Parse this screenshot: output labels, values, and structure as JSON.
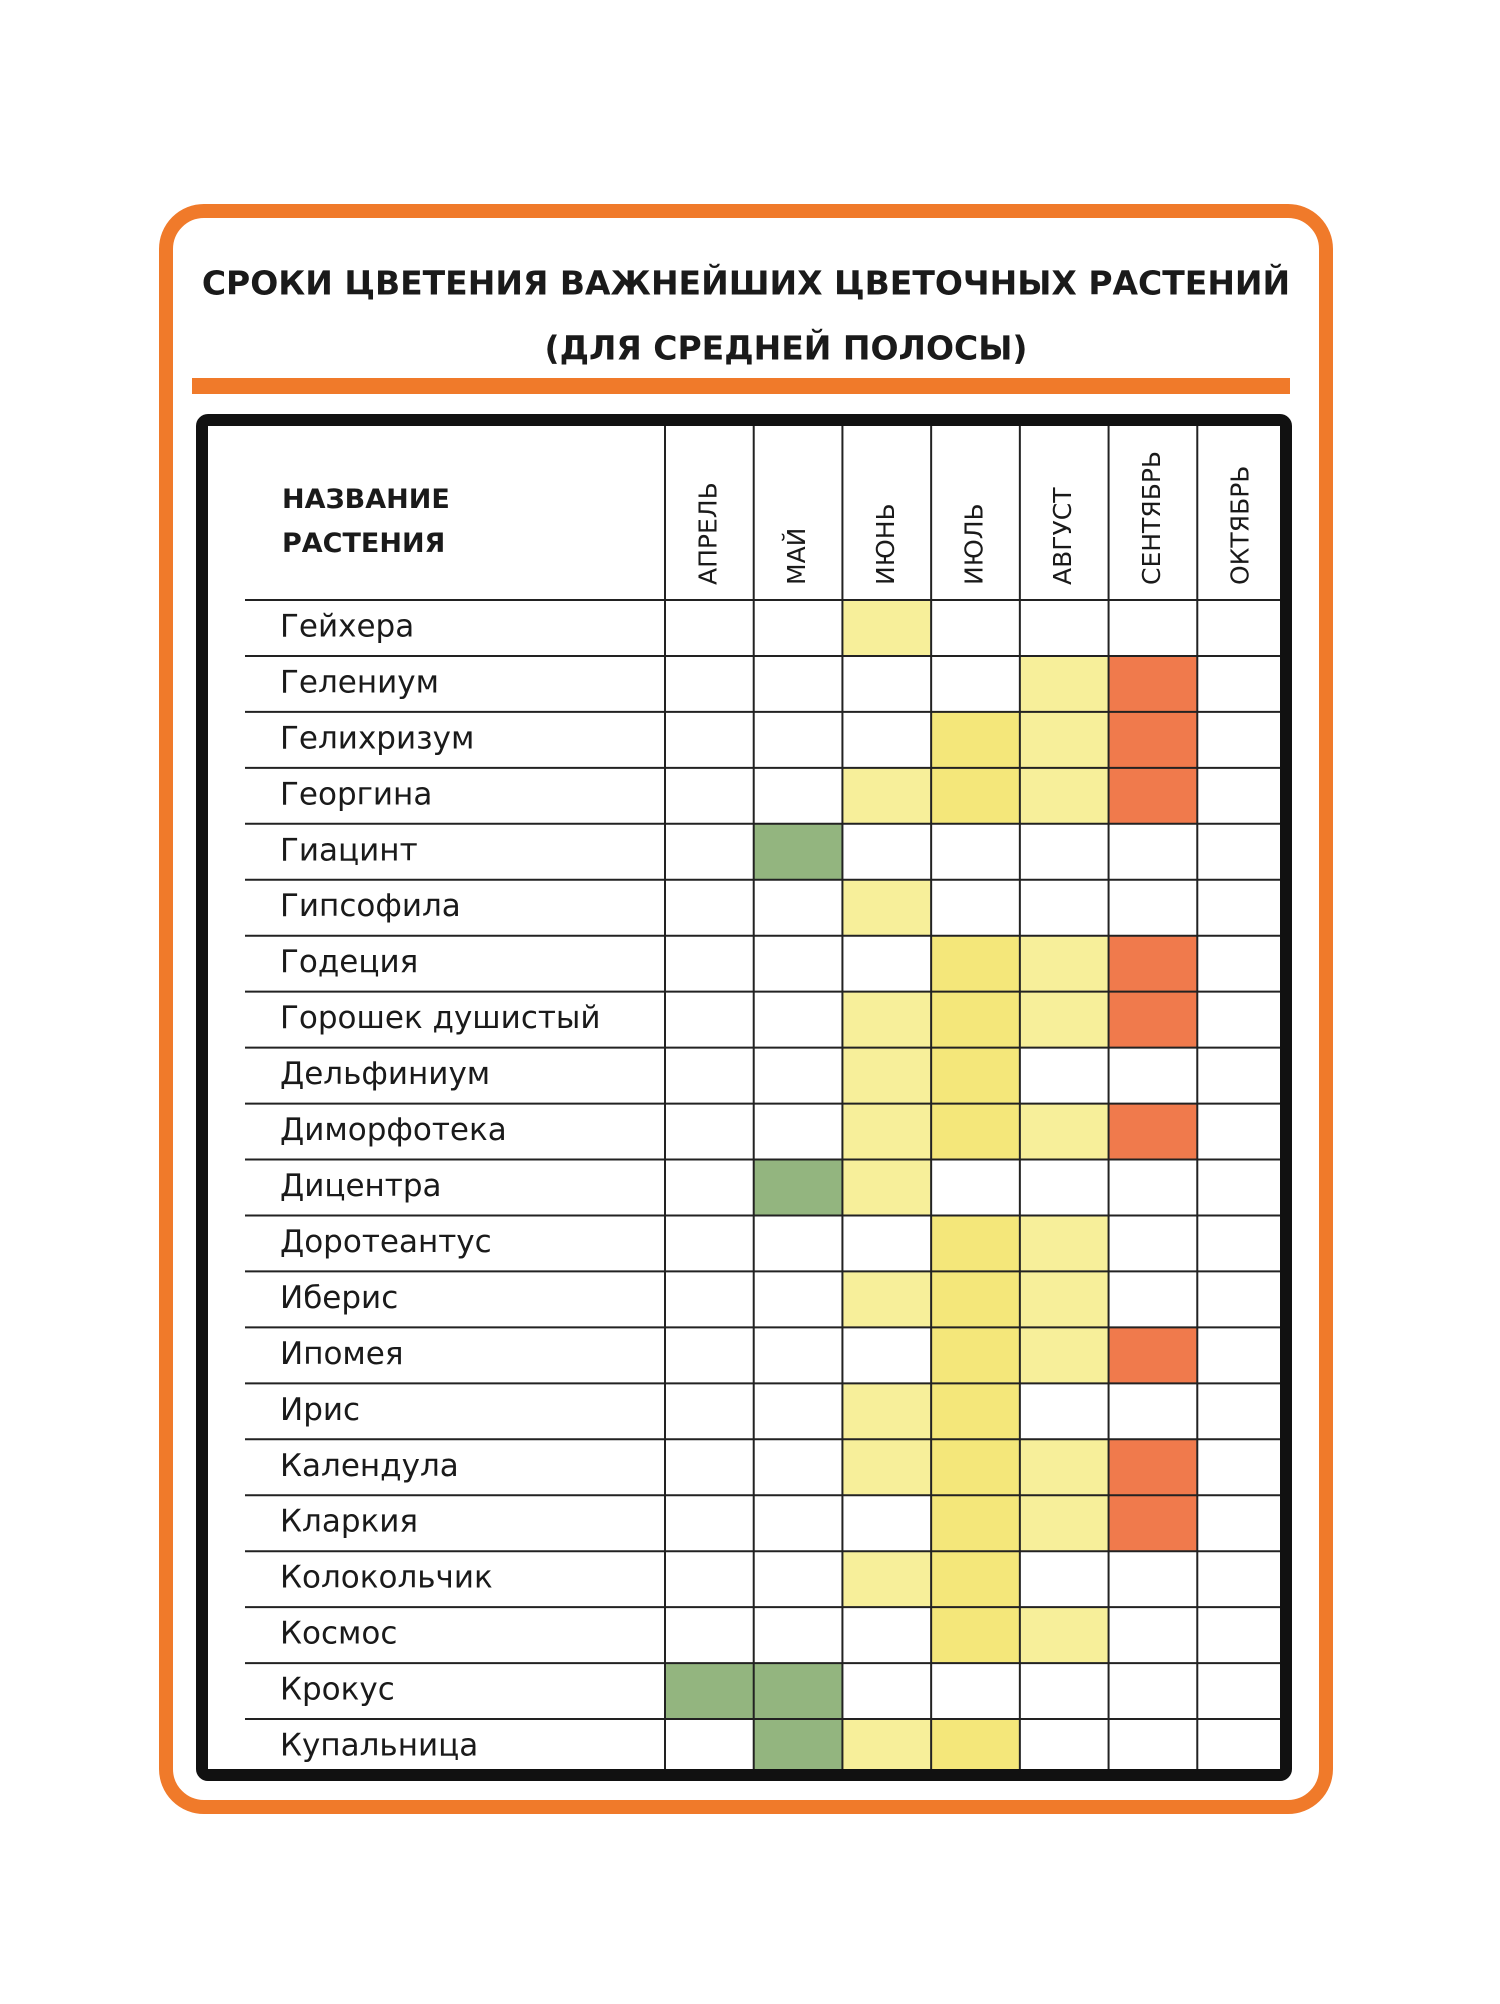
{
  "title": "СРОКИ ЦВЕТЕНИЯ ВАЖНЕЙШИХ ЦВЕТОЧНЫХ РАСТЕНИЙ",
  "subtitle": "(ДЛЯ СРЕДНЕЙ ПОЛОСЫ)",
  "table": {
    "name_header": "НАЗВАНИЕ РАСТЕНИЯ",
    "months": [
      "АПРЕЛЬ",
      "МАЙ",
      "ИЮНЬ",
      "ИЮЛЬ",
      "АВГУСТ",
      "СЕНТЯБРЬ",
      "ОКТЯБРЬ"
    ],
    "rows": [
      {
        "name": "Гейхера",
        "cells": [
          null,
          null,
          "#f7ef9a",
          null,
          null,
          null,
          null
        ]
      },
      {
        "name": "Гелениум",
        "cells": [
          null,
          null,
          null,
          null,
          "#f7ef9a",
          "#f07a4c",
          null
        ]
      },
      {
        "name": "Гелихризум",
        "cells": [
          null,
          null,
          null,
          "#f4e77a",
          "#f7ef9a",
          "#f07a4c",
          null
        ]
      },
      {
        "name": "Георгина",
        "cells": [
          null,
          null,
          "#f7ef9a",
          "#f4e77a",
          "#f7ef9a",
          "#f07a4c",
          null
        ]
      },
      {
        "name": "Гиацинт",
        "cells": [
          null,
          "#93b57f",
          null,
          null,
          null,
          null,
          null
        ]
      },
      {
        "name": "Гипсофила",
        "cells": [
          null,
          null,
          "#f7ef9a",
          null,
          null,
          null,
          null
        ]
      },
      {
        "name": "Годеция",
        "cells": [
          null,
          null,
          null,
          "#f4e77a",
          "#f7ef9a",
          "#f07a4c",
          null
        ]
      },
      {
        "name": "Горошек душистый",
        "cells": [
          null,
          null,
          "#f7ef9a",
          "#f4e77a",
          "#f7ef9a",
          "#f07a4c",
          null
        ]
      },
      {
        "name": "Дельфиниум",
        "cells": [
          null,
          null,
          "#f7ef9a",
          "#f4e77a",
          null,
          null,
          null
        ]
      },
      {
        "name": "Диморфотека",
        "cells": [
          null,
          null,
          "#f7ef9a",
          "#f4e77a",
          "#f7ef9a",
          "#f07a4c",
          null
        ]
      },
      {
        "name": "Дицентра",
        "cells": [
          null,
          "#93b57f",
          "#f7ef9a",
          null,
          null,
          null,
          null
        ]
      },
      {
        "name": "Доротеантус",
        "cells": [
          null,
          null,
          null,
          "#f4e77a",
          "#f7ef9a",
          null,
          null
        ]
      },
      {
        "name": "Иберис",
        "cells": [
          null,
          null,
          "#f7ef9a",
          "#f4e77a",
          "#f7ef9a",
          null,
          null
        ]
      },
      {
        "name": "Ипомея",
        "cells": [
          null,
          null,
          null,
          "#f4e77a",
          "#f7ef9a",
          "#f07a4c",
          null
        ]
      },
      {
        "name": "Ирис",
        "cells": [
          null,
          null,
          "#f7ef9a",
          "#f4e77a",
          null,
          null,
          null
        ]
      },
      {
        "name": "Календула",
        "cells": [
          null,
          null,
          "#f7ef9a",
          "#f4e77a",
          "#f7ef9a",
          "#f07a4c",
          null
        ]
      },
      {
        "name": "Кларкия",
        "cells": [
          null,
          null,
          null,
          "#f4e77a",
          "#f7ef9a",
          "#f07a4c",
          null
        ]
      },
      {
        "name": "Колокольчик",
        "cells": [
          null,
          null,
          "#f7ef9a",
          "#f4e77a",
          null,
          null,
          null
        ]
      },
      {
        "name": "Космос",
        "cells": [
          null,
          null,
          null,
          "#f4e77a",
          "#f7ef9a",
          null,
          null
        ]
      },
      {
        "name": "Крокус",
        "cells": [
          "#93b57f",
          "#93b57f",
          null,
          null,
          null,
          null,
          null
        ]
      },
      {
        "name": "Купальница",
        "cells": [
          null,
          "#93b57f",
          "#f7ef9a",
          "#f4e77a",
          null,
          null,
          null
        ]
      }
    ]
  }
}
